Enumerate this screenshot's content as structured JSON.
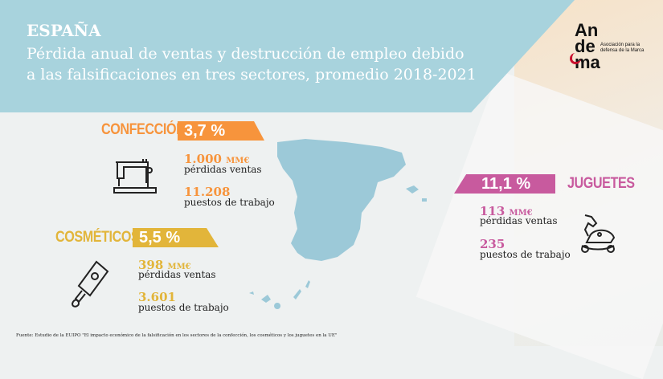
{
  "header": {
    "country": "ESPAÑA",
    "subtitle": "Pérdida anual de ventas y destrucción de empleo debido a las falsificaciones en tres sectores, promedio 2018-2021"
  },
  "logo": {
    "line1": "An",
    "line2": "de",
    "line3": "ma",
    "tagline": "Asociación para la defensa de la Marca"
  },
  "colors": {
    "header": "#a8d3dd",
    "confeccion": "#f7943c",
    "cosmeticos": "#e2b53a",
    "juguetes": "#c85a9e",
    "map": "#9cc9d8"
  },
  "sectors": [
    {
      "name": "CONFECCIÓN",
      "percent": "3,7 %",
      "sales": "1.000",
      "unit": "MM€",
      "sales_label": "pérdidas ventas",
      "jobs": "11.208",
      "jobs_label": "puestos de trabajo",
      "icon": "sewing-machine-icon"
    },
    {
      "name": "COSMÉTICOS",
      "percent": "5,5 %",
      "sales": "398",
      "unit": "MM€",
      "sales_label": "pérdidas ventas",
      "jobs": "3.601",
      "jobs_label": "puestos de trabajo",
      "icon": "cream-tube-icon"
    },
    {
      "name": "JUGUETES",
      "percent": "11,1 %",
      "sales": "113",
      "unit": "MM€",
      "sales_label": "pérdidas ventas",
      "jobs": "235",
      "jobs_label": "puestos de trabajo",
      "icon": "rocking-horse-icon"
    }
  ],
  "footer": "Fuente: Estudio de la EUIPO \"El impacto económico de la falsificación en los sectores de la confección, los cosméticos y los juguetes en la UE\""
}
